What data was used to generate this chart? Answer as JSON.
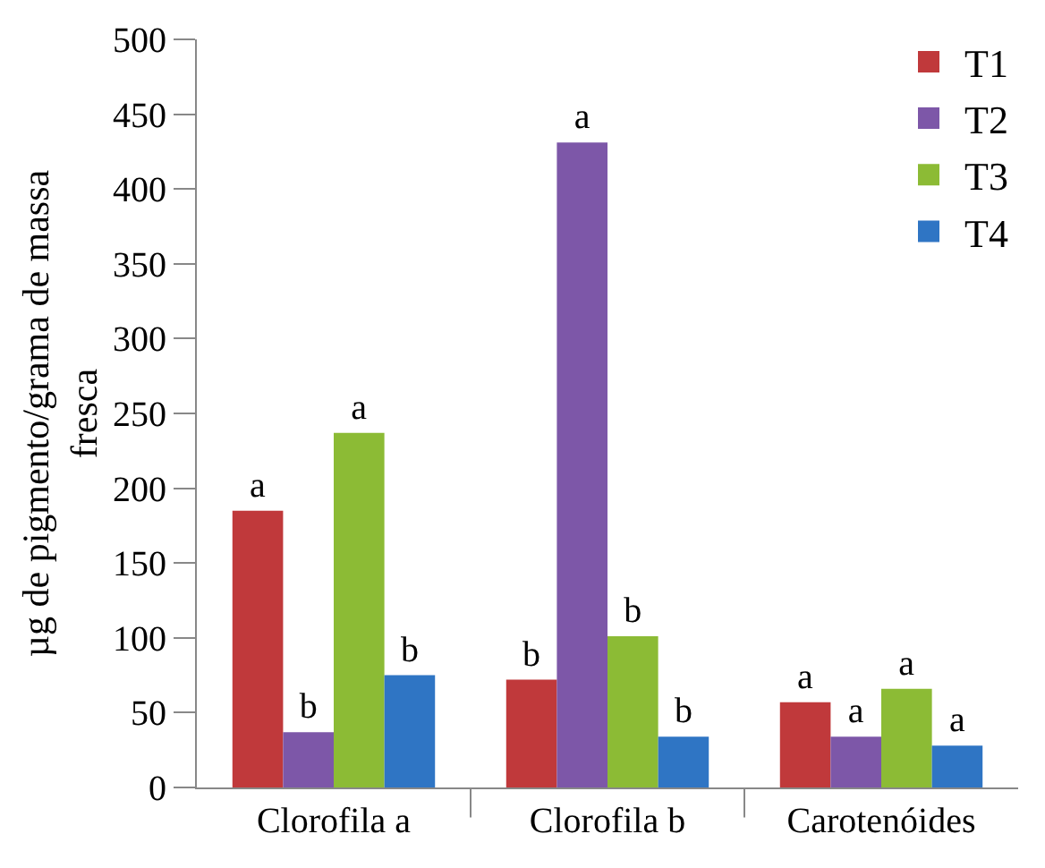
{
  "chart_data": {
    "type": "bar",
    "ylabel": "µg de pigmento/grama de massa fresca",
    "categories": [
      "Clorofila a",
      "Clorofila b",
      "Carotenóides"
    ],
    "series": [
      {
        "name": "T1",
        "color": "#c0393b",
        "values": [
          185,
          72,
          57
        ],
        "value_labels": [
          "a",
          "b",
          "a"
        ]
      },
      {
        "name": "T2",
        "color": "#7d57a8",
        "values": [
          37,
          431,
          34
        ],
        "value_labels": [
          "b",
          "a",
          "a"
        ]
      },
      {
        "name": "T3",
        "color": "#8cbb35",
        "values": [
          237,
          101,
          66
        ],
        "value_labels": [
          "a",
          "b",
          "a"
        ]
      },
      {
        "name": "T4",
        "color": "#2f75c4",
        "values": [
          75,
          34,
          28
        ],
        "value_labels": [
          "b",
          "b",
          "a"
        ]
      }
    ],
    "ylim": [
      0,
      500
    ],
    "yticks": [
      0,
      50,
      100,
      150,
      200,
      250,
      300,
      350,
      400,
      450,
      500
    ],
    "legend": "top right"
  }
}
